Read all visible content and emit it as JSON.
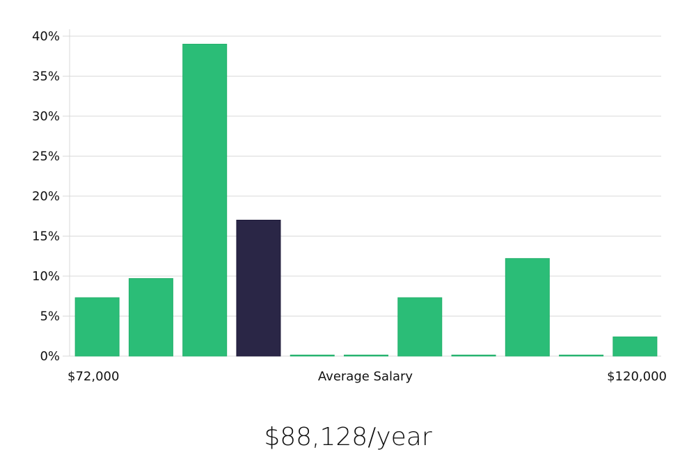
{
  "chart_data": {
    "type": "bar",
    "bins": [
      "1",
      "2",
      "3",
      "4",
      "5",
      "6",
      "7",
      "8",
      "9",
      "10",
      "11"
    ],
    "values": [
      7.3,
      9.7,
      39.0,
      17.0,
      0,
      0,
      7.3,
      0,
      12.2,
      0,
      2.4
    ],
    "highlight_bin": 3,
    "colors": {
      "bar": "#2bbd77",
      "highlight": "#2a2646",
      "grid": "#d9d9d9",
      "text": "#111111"
    },
    "ylim": [
      0,
      40
    ],
    "yticks": [
      0,
      5,
      10,
      15,
      20,
      25,
      30,
      35,
      40
    ],
    "ytick_suffix": "%",
    "grid": true,
    "xlabel_left": "$72,000",
    "xlabel_center": "Average Salary",
    "xlabel_right": "$120,000"
  },
  "salary_display": "$88,128/year"
}
